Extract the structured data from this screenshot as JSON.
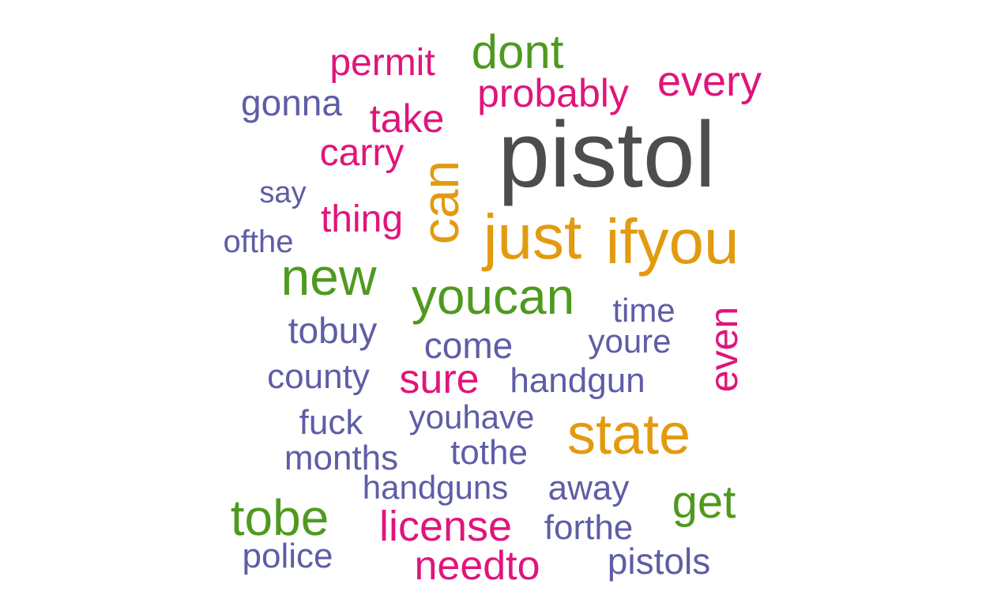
{
  "colors": {
    "grey": "#4d4d4d",
    "orange": "#e29a0f",
    "green": "#4e9a1f",
    "magenta": "#e0157b",
    "purple": "#5e5da6"
  },
  "words": [
    {
      "text": "pistol",
      "color": "grey"
    },
    {
      "text": "just",
      "color": "orange"
    },
    {
      "text": "ifyou",
      "color": "orange"
    },
    {
      "text": "can",
      "color": "orange"
    },
    {
      "text": "state",
      "color": "orange"
    },
    {
      "text": "new",
      "color": "green"
    },
    {
      "text": "youcan",
      "color": "green"
    },
    {
      "text": "tobe",
      "color": "green"
    },
    {
      "text": "get",
      "color": "green"
    },
    {
      "text": "dont",
      "color": "green"
    },
    {
      "text": "license",
      "color": "magenta"
    },
    {
      "text": "needto",
      "color": "magenta"
    },
    {
      "text": "sure",
      "color": "magenta"
    },
    {
      "text": "every",
      "color": "magenta"
    },
    {
      "text": "probably",
      "color": "magenta"
    },
    {
      "text": "permit",
      "color": "magenta"
    },
    {
      "text": "take",
      "color": "magenta"
    },
    {
      "text": "carry",
      "color": "magenta"
    },
    {
      "text": "thing",
      "color": "magenta"
    },
    {
      "text": "even",
      "color": "magenta"
    },
    {
      "text": "gonna",
      "color": "purple"
    },
    {
      "text": "say",
      "color": "purple"
    },
    {
      "text": "ofthe",
      "color": "purple"
    },
    {
      "text": "tobuy",
      "color": "purple"
    },
    {
      "text": "come",
      "color": "purple"
    },
    {
      "text": "time",
      "color": "purple"
    },
    {
      "text": "youre",
      "color": "purple"
    },
    {
      "text": "county",
      "color": "purple"
    },
    {
      "text": "handgun",
      "color": "purple"
    },
    {
      "text": "fuck",
      "color": "purple"
    },
    {
      "text": "youhave",
      "color": "purple"
    },
    {
      "text": "months",
      "color": "purple"
    },
    {
      "text": "tothe",
      "color": "purple"
    },
    {
      "text": "handguns",
      "color": "purple"
    },
    {
      "text": "away",
      "color": "purple"
    },
    {
      "text": "forthe",
      "color": "purple"
    },
    {
      "text": "police",
      "color": "purple"
    },
    {
      "text": "pistols",
      "color": "purple"
    }
  ]
}
